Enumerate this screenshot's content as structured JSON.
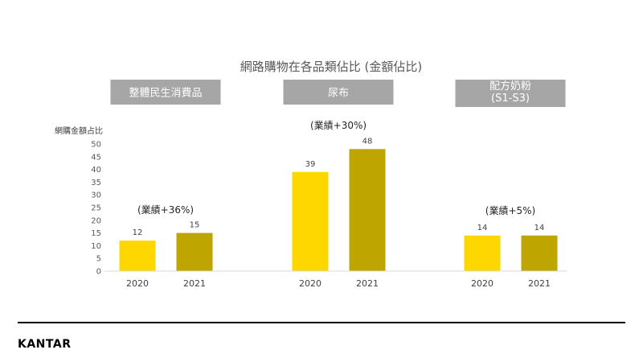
{
  "chart_data": {
    "type": "bar",
    "title": "網路購物在各品類佔比 (金額佔比)",
    "ylabel": "網購金額占比",
    "ylim": [
      0,
      50
    ],
    "yticks": [
      0,
      5,
      10,
      15,
      20,
      25,
      30,
      35,
      40,
      45,
      50
    ],
    "legend": "none",
    "grid": false,
    "groups": [
      {
        "label_lines": [
          "整體民生消費品"
        ],
        "annotation": "(業績+36%)",
        "categories": [
          "2020",
          "2021"
        ],
        "values": [
          12,
          15
        ],
        "value_labels": [
          "12",
          "15"
        ]
      },
      {
        "label_lines": [
          "尿布"
        ],
        "annotation": "(業績+30%)",
        "categories": [
          "2020",
          "2021"
        ],
        "values": [
          39,
          48
        ],
        "value_labels": [
          "39",
          "48"
        ]
      },
      {
        "label_lines": [
          "配方奶粉",
          "(S1-S3)"
        ],
        "annotation": "(業績+5%)",
        "categories": [
          "2020",
          "2021"
        ],
        "values": [
          14,
          14
        ],
        "value_labels": [
          "14",
          "14"
        ]
      }
    ]
  },
  "colors": {
    "bar_2020": "#ffd700",
    "bar_2021": "#bea500",
    "category_box": "#a6a6a6",
    "axis_line": "#d9d9d9",
    "footer_line": "#000000"
  },
  "footer": {
    "brand": "KANTAR"
  }
}
